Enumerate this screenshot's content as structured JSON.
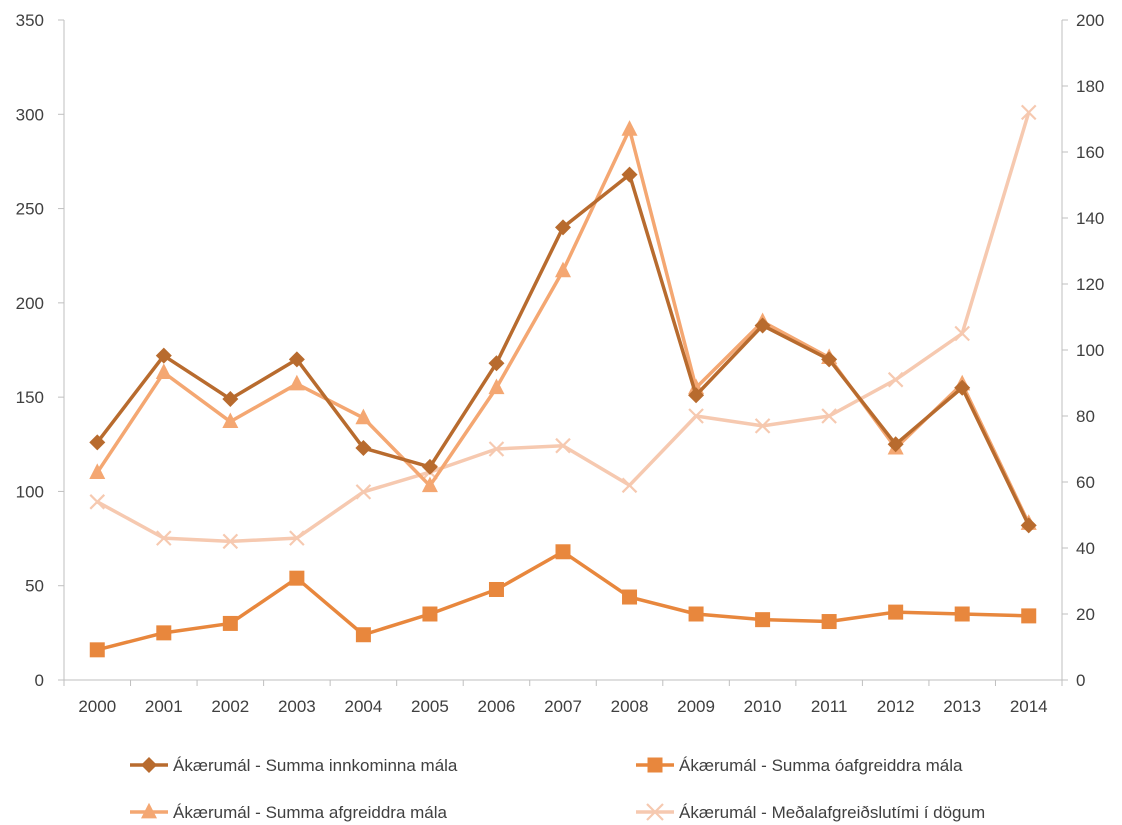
{
  "chart_data": {
    "type": "line",
    "title": "",
    "xlabel": "",
    "ylabel": "",
    "y2label": "",
    "categories": [
      "2000",
      "2001",
      "2002",
      "2003",
      "2004",
      "2005",
      "2006",
      "2007",
      "2008",
      "2009",
      "2010",
      "2011",
      "2012",
      "2013",
      "2014"
    ],
    "ylim": [
      0,
      350
    ],
    "yticks": [
      0,
      50,
      100,
      150,
      200,
      250,
      300,
      350
    ],
    "y2lim": [
      0,
      200
    ],
    "y2ticks": [
      0,
      20,
      40,
      60,
      80,
      100,
      120,
      140,
      160,
      180,
      200
    ],
    "grid": false,
    "legend_position": "bottom",
    "series": [
      {
        "name": "Ákærumál  - Summa innkominna mála",
        "axis": "left",
        "marker": "diamond",
        "color": "#b86b2e",
        "values": [
          126,
          172,
          149,
          170,
          123,
          113,
          168,
          240,
          268,
          151,
          188,
          170,
          125,
          155,
          82
        ]
      },
      {
        "name": "Ákærumál  - Summa óafgreiddra mála",
        "axis": "left",
        "marker": "square",
        "color": "#e8873d",
        "values": [
          16,
          25,
          30,
          54,
          24,
          35,
          48,
          68,
          44,
          35,
          32,
          31,
          36,
          35,
          34
        ]
      },
      {
        "name": "Ákærumál  - Summa afgreiddra mála",
        "axis": "left",
        "marker": "triangle",
        "color": "#f4a772",
        "values": [
          110,
          163,
          137,
          157,
          139,
          103,
          155,
          217,
          292,
          155,
          190,
          171,
          123,
          157,
          83
        ]
      },
      {
        "name": "Ákærumál  - Meðalafgreiðslutími í dögum",
        "axis": "right",
        "marker": "x",
        "color": "#f6c9b0",
        "values": [
          54,
          43,
          42,
          43,
          57,
          63,
          70,
          71,
          59,
          80,
          77,
          80,
          91,
          105,
          172
        ]
      }
    ]
  }
}
